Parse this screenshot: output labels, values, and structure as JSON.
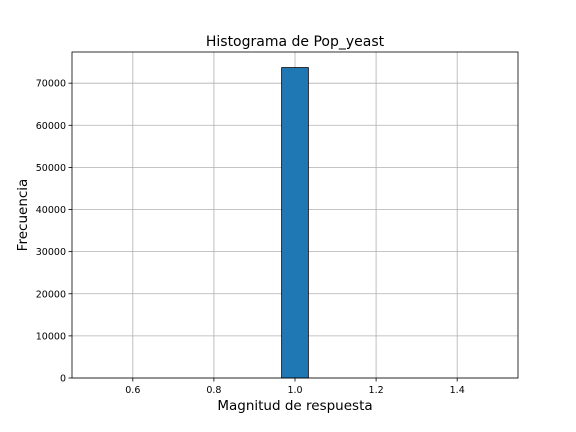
{
  "chart_data": {
    "type": "bar",
    "title": "Histograma de Pop_yeast",
    "xlabel": "Magnitud de respuesta",
    "ylabel": "Frecuencia",
    "bins": [
      {
        "x0": 0.967,
        "x1": 1.033,
        "count": 73700
      }
    ],
    "xlim": [
      0.45,
      1.55
    ],
    "ylim": [
      0,
      77400
    ],
    "xticks": [
      0.6,
      0.8,
      1.0,
      1.2,
      1.4
    ],
    "xtick_labels": [
      "0.6",
      "0.8",
      "1.0",
      "1.2",
      "1.4"
    ],
    "yticks": [
      0,
      10000,
      20000,
      30000,
      40000,
      50000,
      60000,
      70000
    ],
    "ytick_labels": [
      "0",
      "10000",
      "20000",
      "30000",
      "40000",
      "50000",
      "60000",
      "70000"
    ],
    "grid": true,
    "bar_color": "#1f77b4",
    "edge_color": "#000000"
  }
}
